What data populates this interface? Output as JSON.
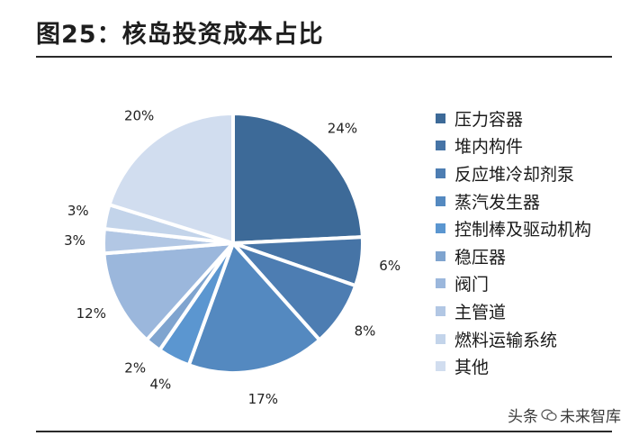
{
  "header": {
    "title": "图25：核岛投资成本占比"
  },
  "chart_data": {
    "type": "pie",
    "title": "图25：核岛投资成本占比",
    "categories": [
      "压力容器",
      "堆内构件",
      "反应堆冷却剂泵",
      "蒸汽发生器",
      "控制棒及驱动机构",
      "稳压器",
      "阀门",
      "主管道",
      "燃料运输系统",
      "其他"
    ],
    "values": [
      24,
      6,
      8,
      17,
      4,
      2,
      12,
      3,
      3,
      20
    ],
    "value_labels": [
      "24%",
      "6%",
      "8%",
      "17%",
      "4%",
      "2%",
      "12%",
      "3%",
      "3%",
      "20%"
    ],
    "colors": [
      "#3d6a98",
      "#4674a6",
      "#4d7db2",
      "#5489c0",
      "#5b96d0",
      "#7fa4cf",
      "#9bb7dc",
      "#b2c7e4",
      "#c3d4ea",
      "#d1ddef"
    ],
    "legend_position": "right",
    "start_angle_deg": 0,
    "direction": "clockwise"
  },
  "watermark": {
    "text_before": "头条",
    "text_after": "未来智库"
  }
}
